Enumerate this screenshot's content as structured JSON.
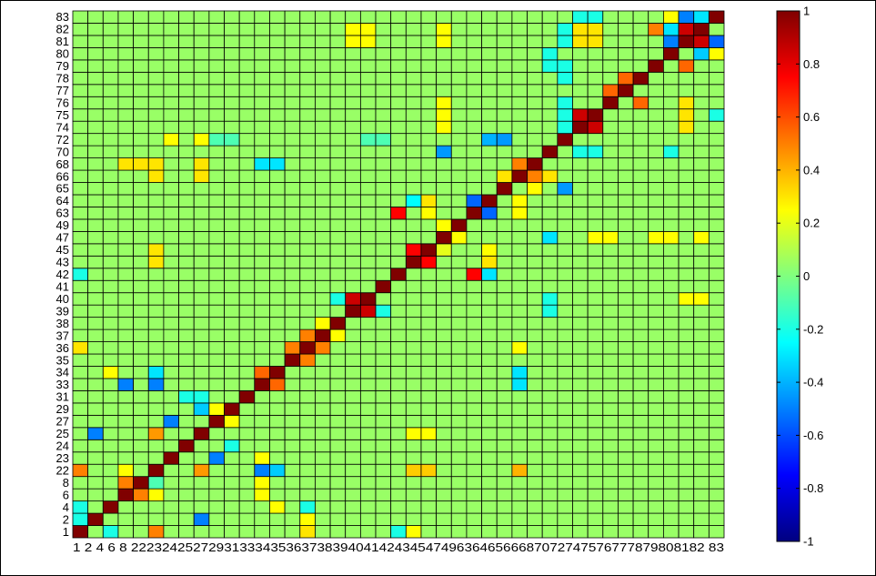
{
  "chart_data": {
    "type": "heatmap",
    "title": "",
    "xlabel": "",
    "ylabel": "",
    "labels": [
      "1",
      "2",
      "4",
      "6",
      "8",
      "22",
      "23",
      "24",
      "25",
      "27",
      "29",
      "31",
      "33",
      "34",
      "35",
      "36",
      "37",
      "38",
      "39",
      "40",
      "41",
      "42",
      "43",
      "45",
      "47",
      "49",
      "63",
      "64",
      "65",
      "66",
      "68",
      "70",
      "72",
      "74",
      "75",
      "76",
      "77",
      "78",
      "79",
      "80",
      "81",
      "82",
      "83"
    ],
    "x_tick_text": "1 2 4 6 8 22232425272931333435363738394041424345474963646566687072747576777879808182 83",
    "colormap": "jet",
    "clim": [
      -1,
      1
    ],
    "colorbar": {
      "ticks": [
        1,
        0.8,
        0.6,
        0.4,
        0.2,
        0,
        -0.2,
        -0.4,
        -0.6,
        -0.8,
        -1
      ],
      "tick_labels": [
        "1",
        "0.8",
        "0.6",
        "0.4",
        "0.2",
        "0",
        "-0.2",
        "-0.4",
        "-0.6",
        "-0.8",
        "-1"
      ],
      "placement": "right"
    },
    "grid": true,
    "diagonal_value": 1,
    "default_value": 0.05,
    "values": [
      {
        "r": "1",
        "c": "22",
        "v": 0.5
      },
      {
        "r": "1",
        "c": "4",
        "v": -0.2
      },
      {
        "r": "1",
        "c": "36",
        "v": 0.3
      },
      {
        "r": "1",
        "c": "42",
        "v": -0.2
      },
      {
        "r": "1",
        "c": "43",
        "v": 0.25
      },
      {
        "r": "2",
        "c": "25",
        "v": -0.5
      },
      {
        "r": "2",
        "c": "1",
        "v": -0.2
      },
      {
        "r": "4",
        "c": "1",
        "v": -0.2
      },
      {
        "r": "4",
        "c": "34",
        "v": 0.25
      },
      {
        "r": "6",
        "c": "8",
        "v": 0.5
      },
      {
        "r": "6",
        "c": "22",
        "v": 0.25
      },
      {
        "r": "8",
        "c": "6",
        "v": 0.5
      },
      {
        "r": "8",
        "c": "22",
        "v": -0.1
      },
      {
        "r": "22",
        "c": "1",
        "v": 0.5
      },
      {
        "r": "22",
        "c": "6",
        "v": 0.25
      },
      {
        "r": "22",
        "c": "25",
        "v": 0.45
      },
      {
        "r": "22",
        "c": "33",
        "v": -0.5
      },
      {
        "r": "22",
        "c": "34",
        "v": -0.35
      },
      {
        "r": "22",
        "c": "43",
        "v": 0.35
      },
      {
        "r": "22",
        "c": "45",
        "v": 0.35
      },
      {
        "r": "22",
        "c": "66",
        "v": 0.4
      },
      {
        "r": "23",
        "c": "27",
        "v": -0.5
      },
      {
        "r": "23",
        "c": "33",
        "v": 0.25
      },
      {
        "r": "25",
        "c": "2",
        "v": -0.5
      },
      {
        "r": "25",
        "c": "22",
        "v": 0.45
      },
      {
        "r": "25",
        "c": "43",
        "v": 0.25
      },
      {
        "r": "25",
        "c": "45",
        "v": 0.25
      },
      {
        "r": "27",
        "c": "23",
        "v": -0.5
      },
      {
        "r": "29",
        "c": "25",
        "v": -0.35
      },
      {
        "r": "33",
        "c": "34",
        "v": 0.55
      },
      {
        "r": "33",
        "c": "6",
        "v": -0.5
      },
      {
        "r": "33",
        "c": "22",
        "v": -0.5
      },
      {
        "r": "34",
        "c": "33",
        "v": 0.55
      },
      {
        "r": "34",
        "c": "4",
        "v": 0.25
      },
      {
        "r": "34",
        "c": "22",
        "v": -0.3
      },
      {
        "r": "35",
        "c": "36",
        "v": 0.5
      },
      {
        "r": "36",
        "c": "35",
        "v": 0.5
      },
      {
        "r": "36",
        "c": "37",
        "v": 0.5
      },
      {
        "r": "36",
        "c": "1",
        "v": 0.3
      },
      {
        "r": "37",
        "c": "36",
        "v": 0.5
      },
      {
        "r": "39",
        "c": "40",
        "v": 0.85
      },
      {
        "r": "40",
        "c": "39",
        "v": 0.85
      },
      {
        "r": "39",
        "c": "41",
        "v": -0.2
      },
      {
        "r": "42",
        "c": "63",
        "v": 0.75
      },
      {
        "r": "63",
        "c": "42",
        "v": 0.75
      },
      {
        "r": "42",
        "c": "64",
        "v": -0.3
      },
      {
        "r": "43",
        "c": "45",
        "v": 0.75
      },
      {
        "r": "45",
        "c": "43",
        "v": 0.75
      },
      {
        "r": "43",
        "c": "22",
        "v": 0.3
      },
      {
        "r": "45",
        "c": "22",
        "v": 0.3
      },
      {
        "r": "43",
        "c": "64",
        "v": 0.3
      },
      {
        "r": "63",
        "c": "64",
        "v": -0.55
      },
      {
        "r": "64",
        "c": "63",
        "v": -0.55
      },
      {
        "r": "64",
        "c": "43",
        "v": -0.25
      },
      {
        "r": "64",
        "c": "45",
        "v": 0.3
      },
      {
        "r": "65",
        "c": "72",
        "v": -0.45
      },
      {
        "r": "66",
        "c": "68",
        "v": 0.5
      },
      {
        "r": "68",
        "c": "66",
        "v": 0.5
      },
      {
        "r": "68",
        "c": "6",
        "v": 0.3
      },
      {
        "r": "68",
        "c": "8",
        "v": 0.3
      },
      {
        "r": "70",
        "c": "47",
        "v": -0.45
      },
      {
        "r": "72",
        "c": "65",
        "v": -0.45
      },
      {
        "r": "74",
        "c": "75",
        "v": 0.85
      },
      {
        "r": "75",
        "c": "74",
        "v": 0.85
      },
      {
        "r": "74",
        "c": "72",
        "v": -0.2
      },
      {
        "r": "76",
        "c": "78",
        "v": 0.55
      },
      {
        "r": "77",
        "c": "76",
        "v": 0.55
      },
      {
        "r": "78",
        "c": "77",
        "v": 0.55
      },
      {
        "r": "79",
        "c": "81",
        "v": 0.55
      },
      {
        "r": "80",
        "c": "82",
        "v": -0.35
      },
      {
        "r": "81",
        "c": "82",
        "v": 0.85
      },
      {
        "r": "82",
        "c": "81",
        "v": 0.85
      },
      {
        "r": "81",
        "c": "80",
        "v": -0.5
      },
      {
        "r": "82",
        "c": "80",
        "v": -0.3
      },
      {
        "r": "81",
        "c": "83",
        "v": -0.55
      },
      {
        "r": "83",
        "c": "81",
        "v": -0.5
      },
      {
        "r": "83",
        "c": "82",
        "v": -0.3
      },
      {
        "r": "82",
        "c": "79",
        "v": 0.5
      },
      {
        "r": "80",
        "c": "83",
        "v": 0.25
      },
      {
        "r": "83",
        "c": "80",
        "v": 0.25
      },
      {
        "r": "82",
        "c": "74",
        "v": 0.3
      },
      {
        "r": "82",
        "c": "75",
        "v": 0.3
      },
      {
        "r": "81",
        "c": "74",
        "v": 0.3
      },
      {
        "r": "81",
        "c": "75",
        "v": 0.3
      },
      {
        "r": "83",
        "c": "74",
        "v": -0.2
      },
      {
        "r": "83",
        "c": "75",
        "v": -0.2
      },
      {
        "r": "76",
        "c": "81",
        "v": 0.3
      },
      {
        "r": "75",
        "c": "81",
        "v": 0.3
      },
      {
        "r": "74",
        "c": "81",
        "v": 0.3
      },
      {
        "r": "75",
        "c": "83",
        "v": -0.2
      },
      {
        "r": "70",
        "c": "75",
        "v": -0.2
      },
      {
        "r": "70",
        "c": "74",
        "v": -0.2
      },
      {
        "r": "70",
        "c": "80",
        "v": -0.2
      },
      {
        "r": "47",
        "c": "70",
        "v": -0.3
      },
      {
        "r": "80",
        "c": "70",
        "v": -0.2
      },
      {
        "r": "79",
        "c": "70",
        "v": -0.2
      },
      {
        "r": "72",
        "c": "64",
        "v": -0.4
      },
      {
        "r": "66",
        "c": "70",
        "v": 0.3
      },
      {
        "r": "36",
        "c": "66",
        "v": 0.25
      },
      {
        "r": "34",
        "c": "66",
        "v": -0.3
      },
      {
        "r": "33",
        "c": "66",
        "v": -0.3
      },
      {
        "r": "42",
        "c": "1",
        "v": -0.2
      },
      {
        "r": "45",
        "c": "64",
        "v": 0.25
      },
      {
        "r": "47",
        "c": "75",
        "v": 0.25
      },
      {
        "r": "47",
        "c": "76",
        "v": 0.25
      },
      {
        "r": "47",
        "c": "79",
        "v": 0.25
      },
      {
        "r": "47",
        "c": "80",
        "v": 0.25
      },
      {
        "r": "47",
        "c": "82",
        "v": 0.25
      },
      {
        "r": "82",
        "c": "39",
        "v": 0.25
      },
      {
        "r": "81",
        "c": "39",
        "v": 0.25
      },
      {
        "r": "82",
        "c": "40",
        "v": 0.25
      },
      {
        "r": "81",
        "c": "40",
        "v": 0.25
      },
      {
        "r": "82",
        "c": "47",
        "v": 0.25
      },
      {
        "r": "81",
        "c": "47",
        "v": 0.25
      },
      {
        "r": "82",
        "c": "72",
        "v": -0.2
      },
      {
        "r": "81",
        "c": "72",
        "v": -0.2
      },
      {
        "r": "76",
        "c": "47",
        "v": 0.25
      },
      {
        "r": "75",
        "c": "47",
        "v": 0.25
      },
      {
        "r": "74",
        "c": "47",
        "v": 0.25
      },
      {
        "r": "79",
        "c": "72",
        "v": -0.2
      },
      {
        "r": "78",
        "c": "72",
        "v": -0.2
      },
      {
        "r": "76",
        "c": "72",
        "v": -0.2
      },
      {
        "r": "75",
        "c": "72",
        "v": -0.2
      },
      {
        "r": "66",
        "c": "22",
        "v": 0.3
      },
      {
        "r": "66",
        "c": "25",
        "v": 0.3
      },
      {
        "r": "63",
        "c": "45",
        "v": 0.25
      },
      {
        "r": "37",
        "c": "38",
        "v": 0.25
      },
      {
        "r": "38",
        "c": "37",
        "v": 0.25
      },
      {
        "r": "40",
        "c": "38",
        "v": -0.2
      },
      {
        "r": "40",
        "c": "70",
        "v": -0.2
      },
      {
        "r": "39",
        "c": "70",
        "v": -0.2
      },
      {
        "r": "40",
        "c": "81",
        "v": 0.25
      },
      {
        "r": "40",
        "c": "82",
        "v": 0.25
      },
      {
        "r": "29",
        "c": "27",
        "v": 0.25
      },
      {
        "r": "27",
        "c": "29",
        "v": 0.25
      },
      {
        "r": "31",
        "c": "25",
        "v": -0.2
      },
      {
        "r": "31",
        "c": "24",
        "v": -0.2
      },
      {
        "r": "24",
        "c": "29",
        "v": -0.2
      },
      {
        "r": "8",
        "c": "33",
        "v": 0.25
      },
      {
        "r": "6",
        "c": "33",
        "v": 0.25
      },
      {
        "r": "4",
        "c": "36",
        "v": -0.2
      },
      {
        "r": "2",
        "c": "36",
        "v": 0.25
      },
      {
        "r": "68",
        "c": "33",
        "v": -0.3
      },
      {
        "r": "68",
        "c": "34",
        "v": -0.3
      },
      {
        "r": "68",
        "c": "22",
        "v": 0.3
      },
      {
        "r": "68",
        "c": "25",
        "v": 0.3
      },
      {
        "r": "65",
        "c": "68",
        "v": 0.25
      },
      {
        "r": "66",
        "c": "65",
        "v": 0.3
      },
      {
        "r": "64",
        "c": "66",
        "v": 0.25
      },
      {
        "r": "63",
        "c": "66",
        "v": 0.25
      },
      {
        "r": "49",
        "c": "47",
        "v": 0.25
      },
      {
        "r": "47",
        "c": "49",
        "v": 0.25
      },
      {
        "r": "45",
        "c": "47",
        "v": 0.2
      },
      {
        "r": "72",
        "c": "23",
        "v": 0.25
      },
      {
        "r": "72",
        "c": "25",
        "v": 0.25
      },
      {
        "r": "72",
        "c": "27",
        "v": -0.1
      },
      {
        "r": "72",
        "c": "29",
        "v": -0.1
      },
      {
        "r": "72",
        "c": "40",
        "v": -0.1
      },
      {
        "r": "72",
        "c": "41",
        "v": -0.1
      }
    ]
  }
}
